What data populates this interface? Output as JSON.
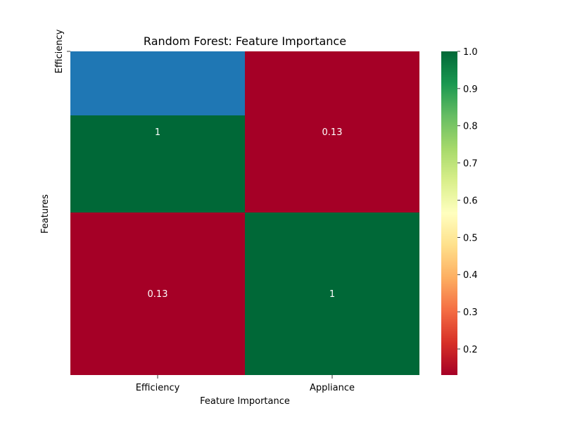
{
  "chart_data": {
    "type": "heatmap",
    "title": "Random Forest: Feature Importance",
    "xlabel": "Feature Importance",
    "ylabel": "Features",
    "x_categories": [
      "Efficiency",
      "Appliance"
    ],
    "y_tick_label": "Efficiency",
    "rows": [
      {
        "values": [
          null,
          null
        ],
        "labels": [
          "",
          ""
        ],
        "colors": [
          "#1f77b4",
          "#a50026"
        ]
      },
      {
        "values": [
          1,
          0.13
        ],
        "labels": [
          "1",
          "0.13"
        ]
      },
      {
        "values": [
          0.13,
          1
        ],
        "labels": [
          "0.13",
          "1"
        ]
      }
    ],
    "colorbar": {
      "range": [
        0.13,
        1.0
      ],
      "ticks": [
        "0.2",
        "0.3",
        "0.4",
        "0.5",
        "0.6",
        "0.7",
        "0.8",
        "0.9",
        "1.0"
      ],
      "tick_values": [
        0.2,
        0.3,
        0.4,
        0.5,
        0.6,
        0.7,
        0.8,
        0.9,
        1.0
      ],
      "colormap": "RdYlGn"
    },
    "colors": {
      "high": "#006837",
      "low": "#a50026",
      "blue": "#1f77b4"
    }
  }
}
